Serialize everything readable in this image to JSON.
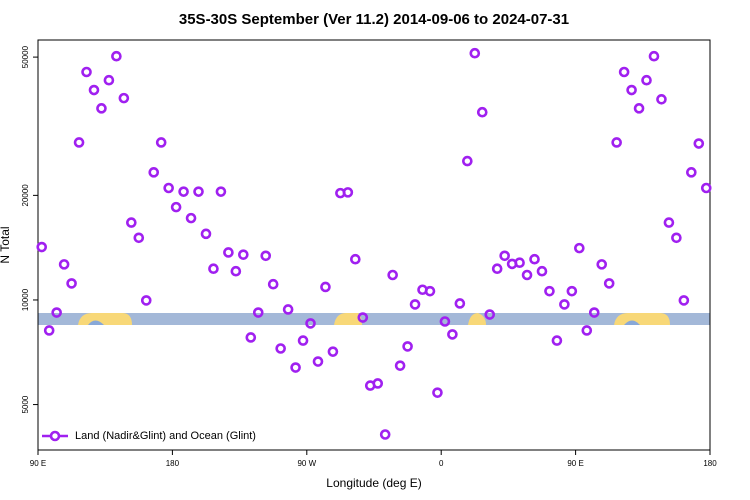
{
  "chart_data": {
    "type": "scatter",
    "title": "35S-30S September (Ver 11.2)   2014-09-06 to 2024-07-31",
    "xlabel": "Longitude (deg E)",
    "ylabel": "N Total",
    "xlim": [
      90,
      540
    ],
    "xticks": [
      {
        "value": 90,
        "label": "90 E"
      },
      180,
      {
        "value": 270,
        "label": "90 W"
      },
      {
        "value": 360,
        "label": "0"
      },
      {
        "value": 450,
        "label": "90 E"
      },
      {
        "value": 540,
        "label": "180"
      }
    ],
    "ylim": [
      3700,
      56000
    ],
    "yscale": "log",
    "yticks": [
      5000,
      10000,
      20000,
      50000
    ],
    "legend": "bottom-left",
    "series": [
      {
        "name": "Land (Nadir&Glint) and Ocean (Glint)",
        "color": "#a020f0",
        "x": [
          92.5,
          97.5,
          102.5,
          107.5,
          112.5,
          117.5,
          122.5,
          127.5,
          132.5,
          137.5,
          142.5,
          147.5,
          152.5,
          157.5,
          162.5,
          167.5,
          172.5,
          177.5,
          182.5,
          187.5,
          192.5,
          197.5,
          202.5,
          207.5,
          212.5,
          217.5,
          222.5,
          227.5,
          232.5,
          237.5,
          242.5,
          247.5,
          252.5,
          257.5,
          262.5,
          267.5,
          272.5,
          277.5,
          282.5,
          287.5,
          292.5,
          297.5,
          302.5,
          307.5,
          312.5,
          317.5,
          322.5,
          327.5,
          332.5,
          337.5,
          342.5,
          347.5,
          352.5,
          357.5,
          362.5,
          367.5,
          372.5,
          377.5,
          382.5,
          387.5,
          392.5,
          397.5,
          402.5,
          407.5,
          412.5,
          417.5,
          422.5,
          427.5,
          432.5,
          437.5,
          442.5,
          447.5,
          452.5,
          457.5,
          462.5,
          467.5,
          472.5,
          477.5,
          482.5,
          487.5,
          492.5,
          497.5,
          502.5,
          507.5,
          512.5,
          517.5,
          522.5,
          527.5,
          532.5,
          537.5
        ],
        "values": [
          14200,
          8170,
          9200,
          12660,
          11160,
          28400,
          45300,
          40200,
          35600,
          42900,
          50300,
          38100,
          16700,
          15100,
          9970,
          23300,
          28400,
          21000,
          18500,
          20500,
          17200,
          20500,
          15500,
          12300,
          20500,
          13700,
          12100,
          13500,
          7800,
          9200,
          13400,
          11100,
          7250,
          9390,
          6390,
          7640,
          8560,
          6650,
          10900,
          7100,
          20300,
          20400,
          13100,
          8900,
          5670,
          5750,
          4100,
          11800,
          6470,
          7350,
          9710,
          10700,
          10600,
          5410,
          8670,
          7960,
          9770,
          25100,
          51300,
          34700,
          9080,
          12300,
          13400,
          12700,
          12800,
          11800,
          13100,
          12100,
          10600,
          7640,
          9710,
          10600,
          14100,
          8170,
          9200,
          12660,
          11160,
          28400,
          45300,
          40200,
          35600,
          42900,
          50300,
          37800,
          16700,
          15100,
          9970,
          23300,
          28200,
          21000
        ]
      }
    ]
  }
}
